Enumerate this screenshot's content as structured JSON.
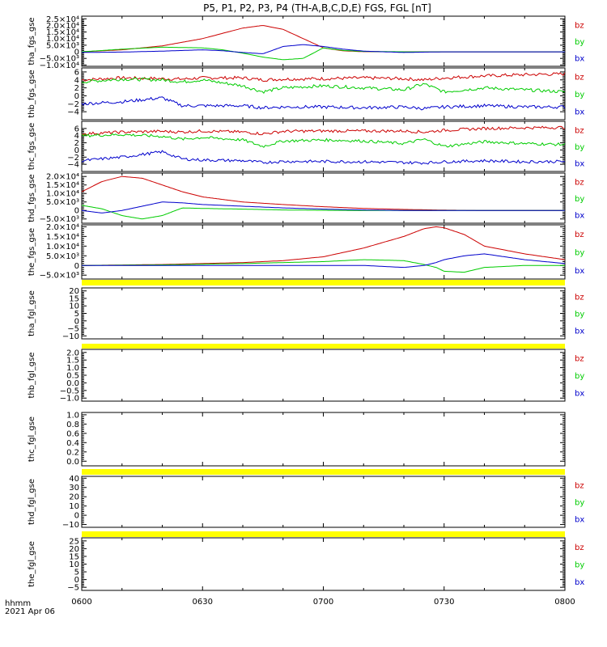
{
  "figure": {
    "title": "P5, P1, P2, P3, P4 (TH-A,B,C,D,E) FGS, FGL [nT]",
    "x_label_line1": "hhmm",
    "x_label_line2": "2021 Apr 06",
    "x_ticks": [
      "0600",
      "0630",
      "0700",
      "0730",
      "0800"
    ]
  },
  "colors": {
    "bz": "#cc0000",
    "by": "#00cc00",
    "bx": "#0000cc",
    "nodata": "#ffff00"
  },
  "chart_data": [
    {
      "type": "line",
      "ylabel": "tha_fgs_gse",
      "yticks": [
        "2.5×10⁴",
        "2.0×10⁴",
        "1.5×10⁴",
        "1.0×10⁴",
        "5.0×10³",
        "0",
        "−5.0×10³",
        "−1.0×10⁴"
      ],
      "ytick_values": [
        25000,
        20000,
        15000,
        10000,
        5000,
        0,
        -5000,
        -10000
      ],
      "ylim": [
        -11000,
        27000
      ],
      "legend": [
        "bz",
        "by",
        "bx"
      ],
      "x_minutes": [
        0,
        10,
        20,
        30,
        35,
        40,
        45,
        50,
        55,
        60,
        65,
        70,
        80,
        90,
        100,
        110,
        120
      ],
      "series": [
        {
          "name": "bz",
          "values": [
            0,
            1500,
            4500,
            10000,
            14000,
            18000,
            20000,
            17000,
            10000,
            3000,
            700,
            100,
            0,
            0,
            0,
            0,
            0
          ]
        },
        {
          "name": "by",
          "values": [
            0,
            2000,
            3500,
            3000,
            1500,
            -1000,
            -4000,
            -6000,
            -5000,
            3000,
            1000,
            300,
            0,
            0,
            0,
            0,
            0
          ]
        },
        {
          "name": "bx",
          "values": [
            -500,
            -200,
            500,
            1500,
            800,
            -500,
            -1500,
            4000,
            5500,
            4000,
            2000,
            500,
            -500,
            0,
            0,
            0,
            0
          ]
        }
      ]
    },
    {
      "type": "line",
      "ylabel": "thb_fgs_gse",
      "yticks": [
        "6",
        "4",
        "2",
        "0",
        "−2",
        "−4"
      ],
      "ytick_values": [
        6,
        4,
        2,
        0,
        -2,
        -4
      ],
      "ylim": [
        -6,
        7
      ],
      "legend": [
        "bz",
        "by",
        "bx"
      ],
      "x_minutes": [
        0,
        10,
        20,
        25,
        30,
        40,
        45,
        50,
        60,
        70,
        80,
        85,
        90,
        100,
        110,
        120
      ],
      "series": [
        {
          "name": "bz",
          "values": [
            4,
            4.5,
            4.3,
            4.2,
            4.5,
            4.5,
            4,
            4.2,
            4.3,
            4.5,
            4.3,
            4,
            4.5,
            5,
            5.3,
            5.5
          ]
        },
        {
          "name": "by",
          "values": [
            3.5,
            4.2,
            4,
            3.5,
            4,
            2.5,
            1,
            2,
            2.5,
            2,
            1.5,
            3,
            1,
            2,
            1.5,
            1
          ]
        },
        {
          "name": "bx",
          "values": [
            -2,
            -1.5,
            -0.5,
            -2.5,
            -2.5,
            -2.5,
            -3,
            -2.8,
            -2.8,
            -3,
            -2.8,
            -3.2,
            -2.8,
            -2.5,
            -2.8,
            -2.8
          ]
        }
      ]
    },
    {
      "type": "line",
      "ylabel": "thc_fgs_gse",
      "yticks": [
        "6",
        "4",
        "2",
        "0",
        "−2",
        "−4"
      ],
      "ytick_values": [
        6,
        4,
        2,
        0,
        -2,
        -4
      ],
      "ylim": [
        -6,
        8
      ],
      "legend": [
        "bz",
        "by",
        "bx"
      ],
      "x_minutes": [
        0,
        10,
        20,
        25,
        30,
        40,
        45,
        50,
        60,
        70,
        80,
        85,
        90,
        100,
        110,
        120
      ],
      "series": [
        {
          "name": "bz",
          "values": [
            4.5,
            5,
            5.2,
            5,
            5.3,
            5,
            4.5,
            5.2,
            5.3,
            5.3,
            5.3,
            5,
            5.5,
            6,
            6.2,
            6.3
          ]
        },
        {
          "name": "by",
          "values": [
            4,
            4.3,
            3.8,
            3,
            3.5,
            2.8,
            1,
            2.5,
            2.8,
            2.5,
            1.8,
            3,
            1,
            2.3,
            1.8,
            1.5
          ]
        },
        {
          "name": "bx",
          "values": [
            -3,
            -2,
            -0.5,
            -2.5,
            -2.8,
            -3,
            -3.5,
            -3.2,
            -3.2,
            -3.3,
            -3.5,
            -3.6,
            -3.3,
            -3,
            -3.3,
            -3.2
          ]
        }
      ]
    },
    {
      "type": "line",
      "ylabel": "thd_fgs_gse",
      "yticks": [
        "2.0×10⁴",
        "1.5×10⁴",
        "1.0×10⁴",
        "5.0×10³",
        "0",
        "−5.0×10³"
      ],
      "ytick_values": [
        20000,
        15000,
        10000,
        5000,
        0,
        -5000
      ],
      "ylim": [
        -7500,
        22000
      ],
      "legend": [
        "bz",
        "by",
        "bx"
      ],
      "x_minutes": [
        0,
        5,
        10,
        15,
        20,
        25,
        30,
        40,
        50,
        60,
        70,
        80,
        90,
        100,
        110,
        120
      ],
      "series": [
        {
          "name": "bz",
          "values": [
            11000,
            17000,
            20000,
            19000,
            15000,
            11000,
            8000,
            5000,
            3500,
            2200,
            1200,
            600,
            200,
            0,
            0,
            0
          ]
        },
        {
          "name": "by",
          "values": [
            3000,
            1000,
            -3000,
            -5000,
            -3000,
            1500,
            1200,
            800,
            300,
            100,
            0,
            0,
            0,
            0,
            0,
            0
          ]
        },
        {
          "name": "bx",
          "values": [
            0,
            -1500,
            0,
            2500,
            5000,
            4500,
            3500,
            2500,
            1500,
            800,
            300,
            0,
            0,
            0,
            0,
            0
          ]
        }
      ]
    },
    {
      "type": "line",
      "ylabel": "the_fgs_gse",
      "yticks": [
        "2.0×10⁴",
        "1.5×10⁴",
        "1.0×10⁴",
        "5.0×10³",
        "0",
        "−5.0×10³"
      ],
      "ytick_values": [
        20000,
        15000,
        10000,
        5000,
        0,
        -5000
      ],
      "ylim": [
        -7000,
        21000
      ],
      "legend": [
        "bz",
        "by",
        "bx"
      ],
      "x_minutes": [
        0,
        20,
        40,
        50,
        60,
        70,
        80,
        85,
        88,
        90,
        95,
        100,
        110,
        120
      ],
      "series": [
        {
          "name": "bz",
          "values": [
            0,
            500,
            1500,
            2500,
            4500,
            9000,
            15000,
            19000,
            20000,
            19500,
            16000,
            10000,
            6000,
            3000
          ]
        },
        {
          "name": "by",
          "values": [
            0,
            300,
            1000,
            1500,
            2000,
            3000,
            2500,
            500,
            -1000,
            -3000,
            -3500,
            -1000,
            0,
            0
          ]
        },
        {
          "name": "bx",
          "values": [
            0,
            0,
            0,
            0,
            0,
            0,
            -1000,
            0,
            1500,
            3000,
            5000,
            6000,
            3000,
            1000
          ]
        }
      ]
    },
    {
      "type": "line",
      "ylabel": "tha_fgl_gse",
      "yticks": [
        "20",
        "15",
        "10",
        "5",
        "0",
        "−5",
        "−10"
      ],
      "ytick_values": [
        20,
        15,
        10,
        5,
        0,
        -5,
        -10
      ],
      "ylim": [
        -12,
        22
      ],
      "legend": [
        "bz",
        "by",
        "bx"
      ],
      "nodata_bar": true,
      "series": []
    },
    {
      "type": "line",
      "ylabel": "thb_fgl_gse",
      "yticks": [
        "2.0",
        "1.5",
        "1.0",
        "0.5",
        "0.0",
        "−0.5",
        "−1.0"
      ],
      "ytick_values": [
        2.0,
        1.5,
        1.0,
        0.5,
        0.0,
        -0.5,
        -1.0
      ],
      "ylim": [
        -1.2,
        2.2
      ],
      "legend": [
        "bz",
        "by",
        "bx"
      ],
      "nodata_bar": false,
      "series": []
    },
    {
      "type": "line",
      "ylabel": "thc_fgl_gse",
      "yticks": [
        "1.0",
        "0.8",
        "0.6",
        "0.4",
        "0.2",
        "0.0"
      ],
      "ytick_values": [
        1.0,
        0.8,
        0.6,
        0.4,
        0.2,
        0.0
      ],
      "ylim": [
        -0.1,
        1.05
      ],
      "legend": [],
      "nodata_bar": false,
      "series": []
    },
    {
      "type": "line",
      "ylabel": "thd_fgl_gse",
      "yticks": [
        "40",
        "30",
        "20",
        "10",
        "0",
        "−10"
      ],
      "ytick_values": [
        40,
        30,
        20,
        10,
        0,
        -10
      ],
      "ylim": [
        -13,
        42
      ],
      "legend": [
        "bz",
        "by",
        "bx"
      ],
      "nodata_bar": true,
      "series": []
    },
    {
      "type": "line",
      "ylabel": "the_fgl_gse",
      "yticks": [
        "25",
        "20",
        "15",
        "10",
        "5",
        "0",
        "−5"
      ],
      "ytick_values": [
        25,
        20,
        15,
        10,
        5,
        0,
        -5
      ],
      "ylim": [
        -7,
        27
      ],
      "legend": [
        "bz",
        "by",
        "bx"
      ],
      "nodata_bar": true,
      "series": []
    }
  ]
}
